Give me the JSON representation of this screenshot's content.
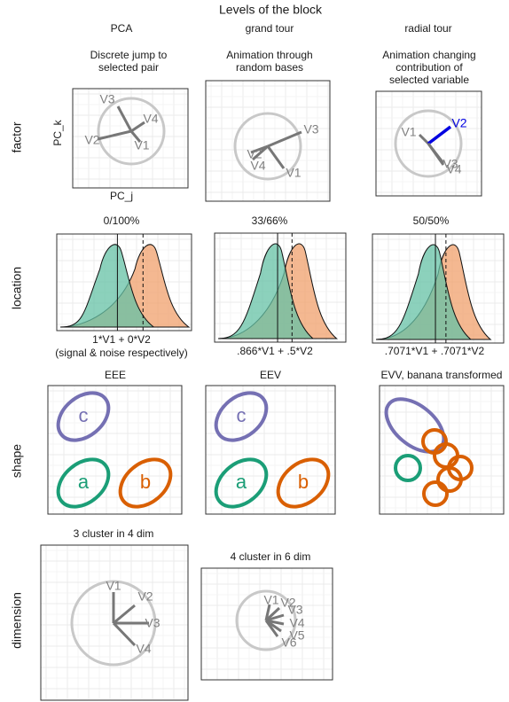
{
  "title": "Levels of the block",
  "columns": [
    "PCA",
    "grand tour",
    "radial tour"
  ],
  "rows": [
    "factor",
    "location",
    "shape",
    "dimension"
  ],
  "factor": {
    "subtitles": [
      [
        "Discrete jump to",
        "selected pair"
      ],
      [
        "Animation through",
        "random bases"
      ],
      [
        "Animation changing",
        "contribution of",
        "selected variable"
      ]
    ],
    "axis_y": "PC_k",
    "axis_x": "PC_j",
    "panels": [
      [
        "V1",
        "V2",
        "V3",
        "V4"
      ],
      [
        "V1",
        "V2",
        "V3",
        "V4"
      ],
      [
        "V1",
        "V2",
        "V3",
        "V4"
      ]
    ]
  },
  "location": {
    "titles": [
      "0/100%",
      "33/66%",
      "50/50%"
    ],
    "captions": [
      [
        "1*V1 + 0*V2",
        "(signal & noise respectively)"
      ],
      [
        ".866*V1 + .5*V2"
      ],
      [
        ".7071*V1 + .7071*V2"
      ]
    ]
  },
  "shape": {
    "titles": [
      "EEE",
      "EEV",
      "EVV, banana transformed"
    ],
    "clusters": [
      [
        "c",
        "a",
        "b"
      ],
      [
        "c",
        "a",
        "b"
      ]
    ]
  },
  "dimension": {
    "titles": [
      "3 cluster in 4 dim",
      "4 cluster in 6 dim"
    ],
    "panels": [
      [
        "V1",
        "V2",
        "V3",
        "V4"
      ],
      [
        "V1",
        "V2",
        "V3",
        "V4",
        "V5",
        "V6"
      ]
    ]
  }
}
